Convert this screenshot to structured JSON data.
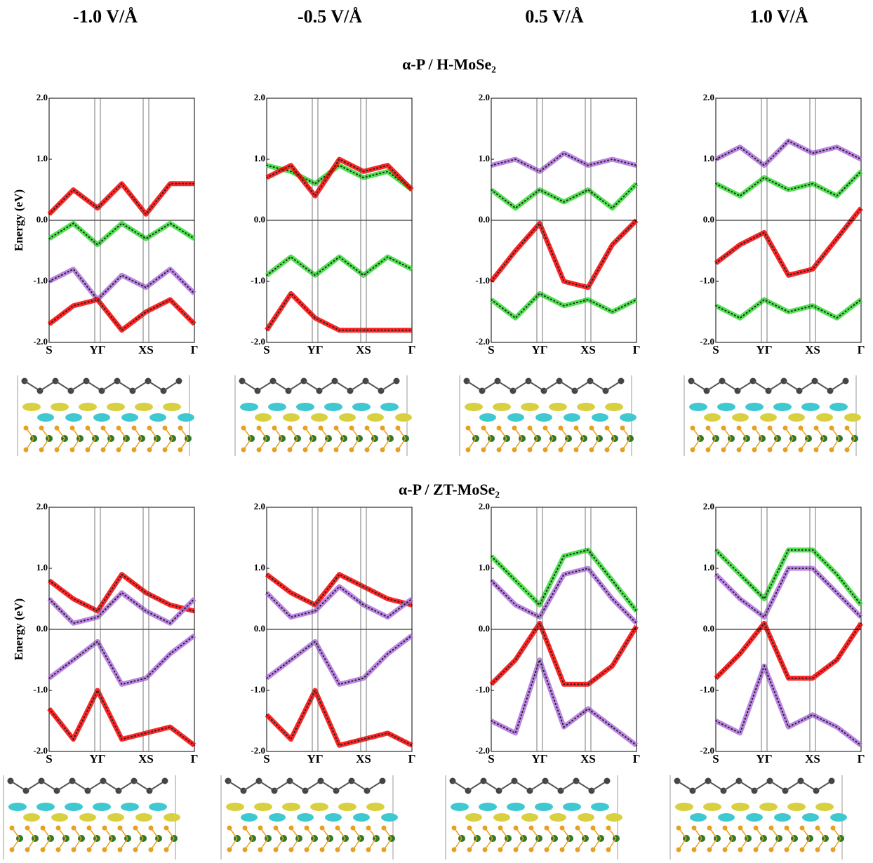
{
  "headers": [
    "-1.0 V/Å",
    "-0.5 V/Å",
    "0.5 V/Å",
    "1.0 V/Å"
  ],
  "rows": [
    "α-P / H-MoSe₂",
    "α-P / ZT-MoSe₂"
  ],
  "chart_data": [
    {
      "type": "line",
      "ylabel": "Energy (eV)",
      "xlim": [
        0,
        3
      ],
      "ylim": [
        -2,
        2
      ],
      "yticks": [
        {
          "value": 2,
          "label": "2.0"
        },
        {
          "value": 1,
          "label": "1.0"
        },
        {
          "value": 0,
          "label": "0.0"
        },
        {
          "value": -1,
          "label": "-1.0"
        },
        {
          "value": -2,
          "label": "-2.0"
        }
      ],
      "xticks": [
        {
          "value": 0,
          "label": "S"
        },
        {
          "value": 1,
          "label": "YΓ"
        },
        {
          "value": 2,
          "label": "XS"
        },
        {
          "value": 3,
          "label": "Γ"
        }
      ],
      "x": [
        0,
        0.5,
        1,
        1.5,
        2,
        2.5,
        3
      ],
      "series": [
        {
          "color": "#ff0000",
          "values": [
            0.1,
            0.5,
            0.2,
            0.6,
            0.1,
            0.6,
            0.6
          ]
        },
        {
          "color": "#33dd33",
          "values": [
            -0.3,
            -0.05,
            -0.4,
            -0.05,
            -0.3,
            -0.05,
            -0.3
          ]
        },
        {
          "color": "#b070e0",
          "values": [
            -1.0,
            -0.8,
            -1.3,
            -0.9,
            -1.1,
            -0.8,
            -1.2
          ]
        },
        {
          "color": "#ff0000",
          "values": [
            -1.7,
            -1.4,
            -1.3,
            -1.8,
            -1.5,
            -1.3,
            -1.7
          ]
        }
      ]
    },
    {
      "type": "line",
      "xlim": [
        0,
        3
      ],
      "ylim": [
        -2,
        2
      ],
      "yticks": [
        {
          "value": 2,
          "label": "2.0"
        },
        {
          "value": 1,
          "label": "1.0"
        },
        {
          "value": 0,
          "label": "0.0"
        },
        {
          "value": -1,
          "label": "-1.0"
        },
        {
          "value": -2,
          "label": "-2.0"
        }
      ],
      "xticks": [
        {
          "value": 0,
          "label": "S"
        },
        {
          "value": 1,
          "label": "YΓ"
        },
        {
          "value": 2,
          "label": "XS"
        },
        {
          "value": 3,
          "label": "Γ"
        }
      ],
      "x": [
        0,
        0.5,
        1,
        1.5,
        2,
        2.5,
        3
      ],
      "series": [
        {
          "color": "#33dd33",
          "values": [
            0.9,
            0.8,
            0.6,
            0.9,
            0.7,
            0.8,
            0.5
          ]
        },
        {
          "color": "#ff0000",
          "values": [
            0.7,
            0.9,
            0.4,
            1.0,
            0.8,
            0.9,
            0.5
          ]
        },
        {
          "color": "#33dd33",
          "values": [
            -0.9,
            -0.6,
            -0.9,
            -0.6,
            -0.9,
            -0.6,
            -0.8
          ]
        },
        {
          "color": "#ff0000",
          "values": [
            -1.8,
            -1.2,
            -1.6,
            -1.8,
            -1.8,
            -1.8,
            -1.8
          ]
        }
      ]
    },
    {
      "type": "line",
      "xlim": [
        0,
        3
      ],
      "ylim": [
        -2,
        2
      ],
      "yticks": [
        {
          "value": 2,
          "label": "2.0"
        },
        {
          "value": 1,
          "label": "1.0"
        },
        {
          "value": 0,
          "label": "0.0"
        },
        {
          "value": -1,
          "label": "-1.0"
        },
        {
          "value": -2,
          "label": "-2.0"
        }
      ],
      "xticks": [
        {
          "value": 0,
          "label": "S"
        },
        {
          "value": 1,
          "label": "YΓ"
        },
        {
          "value": 2,
          "label": "XS"
        },
        {
          "value": 3,
          "label": "Γ"
        }
      ],
      "x": [
        0,
        0.5,
        1,
        1.5,
        2,
        2.5,
        3
      ],
      "series": [
        {
          "color": "#b070e0",
          "values": [
            0.9,
            1.0,
            0.8,
            1.1,
            0.9,
            1.0,
            0.9
          ]
        },
        {
          "color": "#33dd33",
          "values": [
            0.5,
            0.2,
            0.5,
            0.3,
            0.5,
            0.2,
            0.6
          ]
        },
        {
          "color": "#ff0000",
          "values": [
            -1.0,
            -0.5,
            -0.05,
            -1.0,
            -1.1,
            -0.4,
            0.0
          ]
        },
        {
          "color": "#33dd33",
          "values": [
            -1.3,
            -1.6,
            -1.2,
            -1.4,
            -1.3,
            -1.5,
            -1.3
          ]
        }
      ]
    },
    {
      "type": "line",
      "xlim": [
        0,
        3
      ],
      "ylim": [
        -2,
        2
      ],
      "yticks": [
        {
          "value": 2,
          "label": "2.0"
        },
        {
          "value": 1,
          "label": "1.0"
        },
        {
          "value": 0,
          "label": "0.0"
        },
        {
          "value": -1,
          "label": "-1.0"
        },
        {
          "value": -2,
          "label": "-2.0"
        }
      ],
      "xticks": [
        {
          "value": 0,
          "label": "S"
        },
        {
          "value": 1,
          "label": "YΓ"
        },
        {
          "value": 2,
          "label": "XS"
        },
        {
          "value": 3,
          "label": "Γ"
        }
      ],
      "x": [
        0,
        0.5,
        1,
        1.5,
        2,
        2.5,
        3
      ],
      "series": [
        {
          "color": "#b070e0",
          "values": [
            1.0,
            1.2,
            0.9,
            1.3,
            1.1,
            1.2,
            1.0
          ]
        },
        {
          "color": "#33dd33",
          "values": [
            0.6,
            0.4,
            0.7,
            0.5,
            0.6,
            0.4,
            0.8
          ]
        },
        {
          "color": "#ff0000",
          "values": [
            -0.7,
            -0.4,
            -0.2,
            -0.9,
            -0.8,
            -0.3,
            0.2
          ]
        },
        {
          "color": "#33dd33",
          "values": [
            -1.4,
            -1.6,
            -1.3,
            -1.5,
            -1.4,
            -1.6,
            -1.3
          ]
        }
      ]
    },
    {
      "type": "line",
      "ylabel": "Energy (eV)",
      "xlim": [
        0,
        3
      ],
      "ylim": [
        -2,
        2
      ],
      "yticks": [
        {
          "value": 2,
          "label": "2.0"
        },
        {
          "value": 1,
          "label": "1.0"
        },
        {
          "value": 0,
          "label": "0.0"
        },
        {
          "value": -1,
          "label": "-1.0"
        },
        {
          "value": -2,
          "label": "-2.0"
        }
      ],
      "xticks": [
        {
          "value": 0,
          "label": "S"
        },
        {
          "value": 1,
          "label": "YΓ"
        },
        {
          "value": 2,
          "label": "XS"
        },
        {
          "value": 3,
          "label": "Γ"
        }
      ],
      "x": [
        0,
        0.5,
        1,
        1.5,
        2,
        2.5,
        3
      ],
      "series": [
        {
          "color": "#ff0000",
          "values": [
            0.8,
            0.5,
            0.3,
            0.9,
            0.6,
            0.4,
            0.3
          ]
        },
        {
          "color": "#b070e0",
          "values": [
            0.5,
            0.1,
            0.2,
            0.6,
            0.3,
            0.1,
            0.5
          ]
        },
        {
          "color": "#b070e0",
          "values": [
            -0.8,
            -0.5,
            -0.2,
            -0.9,
            -0.8,
            -0.4,
            -0.1
          ]
        },
        {
          "color": "#ff0000",
          "values": [
            -1.3,
            -1.8,
            -1.0,
            -1.8,
            -1.7,
            -1.6,
            -1.9
          ]
        }
      ]
    },
    {
      "type": "line",
      "xlim": [
        0,
        3
      ],
      "ylim": [
        -2,
        2
      ],
      "yticks": [
        {
          "value": 2,
          "label": "2.0"
        },
        {
          "value": 1,
          "label": "1.0"
        },
        {
          "value": 0,
          "label": "0.0"
        },
        {
          "value": -1,
          "label": "-1.0"
        },
        {
          "value": -2,
          "label": "-2.0"
        }
      ],
      "xticks": [
        {
          "value": 0,
          "label": "S"
        },
        {
          "value": 1,
          "label": "YΓ"
        },
        {
          "value": 2,
          "label": "XS"
        },
        {
          "value": 3,
          "label": "Γ"
        }
      ],
      "x": [
        0,
        0.5,
        1,
        1.5,
        2,
        2.5,
        3
      ],
      "series": [
        {
          "color": "#ff0000",
          "values": [
            0.9,
            0.6,
            0.4,
            0.9,
            0.7,
            0.5,
            0.4
          ]
        },
        {
          "color": "#b070e0",
          "values": [
            0.6,
            0.2,
            0.3,
            0.7,
            0.4,
            0.2,
            0.5
          ]
        },
        {
          "color": "#b070e0",
          "values": [
            -0.8,
            -0.5,
            -0.2,
            -0.9,
            -0.8,
            -0.4,
            -0.1
          ]
        },
        {
          "color": "#ff0000",
          "values": [
            -1.4,
            -1.8,
            -1.0,
            -1.9,
            -1.8,
            -1.7,
            -1.9
          ]
        }
      ]
    },
    {
      "type": "line",
      "xlim": [
        0,
        3
      ],
      "ylim": [
        -2,
        2
      ],
      "yticks": [
        {
          "value": 2,
          "label": "2.0"
        },
        {
          "value": 1,
          "label": "1.0"
        },
        {
          "value": 0,
          "label": "0.0"
        },
        {
          "value": -1,
          "label": "-1.0"
        },
        {
          "value": -2,
          "label": "-2.0"
        }
      ],
      "xticks": [
        {
          "value": 0,
          "label": "S"
        },
        {
          "value": 1,
          "label": "YΓ"
        },
        {
          "value": 2,
          "label": "XS"
        },
        {
          "value": 3,
          "label": "Γ"
        }
      ],
      "x": [
        0,
        0.5,
        1,
        1.5,
        2,
        2.5,
        3
      ],
      "series": [
        {
          "color": "#33dd33",
          "values": [
            1.2,
            0.8,
            0.4,
            1.2,
            1.3,
            0.8,
            0.3
          ]
        },
        {
          "color": "#b070e0",
          "values": [
            0.8,
            0.4,
            0.2,
            0.9,
            1.0,
            0.5,
            0.1
          ]
        },
        {
          "color": "#ff0000",
          "values": [
            -0.9,
            -0.5,
            0.1,
            -0.9,
            -0.9,
            -0.6,
            0.05
          ]
        },
        {
          "color": "#b070e0",
          "values": [
            -1.5,
            -1.7,
            -0.5,
            -1.6,
            -1.3,
            -1.6,
            -1.9
          ]
        }
      ]
    },
    {
      "type": "line",
      "xlim": [
        0,
        3
      ],
      "ylim": [
        -2,
        2
      ],
      "yticks": [
        {
          "value": 2,
          "label": "2.0"
        },
        {
          "value": 1,
          "label": "1.0"
        },
        {
          "value": 0,
          "label": "0.0"
        },
        {
          "value": -1,
          "label": "-1.0"
        },
        {
          "value": -2,
          "label": "-2.0"
        }
      ],
      "xticks": [
        {
          "value": 0,
          "label": "S"
        },
        {
          "value": 1,
          "label": "YΓ"
        },
        {
          "value": 2,
          "label": "XS"
        },
        {
          "value": 3,
          "label": "Γ"
        }
      ],
      "x": [
        0,
        0.5,
        1,
        1.5,
        2,
        2.5,
        3
      ],
      "series": [
        {
          "color": "#33dd33",
          "values": [
            1.3,
            0.9,
            0.5,
            1.3,
            1.3,
            0.9,
            0.4
          ]
        },
        {
          "color": "#b070e0",
          "values": [
            0.9,
            0.5,
            0.2,
            1.0,
            1.0,
            0.6,
            0.2
          ]
        },
        {
          "color": "#ff0000",
          "values": [
            -0.8,
            -0.4,
            0.1,
            -0.8,
            -0.8,
            -0.5,
            0.1
          ]
        },
        {
          "color": "#b070e0",
          "values": [
            -1.5,
            -1.7,
            -0.6,
            -1.6,
            -1.4,
            -1.6,
            -1.9
          ]
        }
      ]
    }
  ]
}
